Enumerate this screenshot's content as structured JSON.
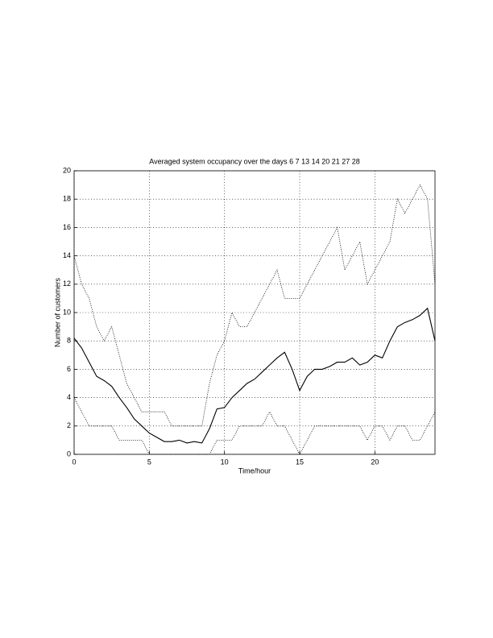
{
  "chart_data": {
    "type": "line",
    "title": "Averaged system occupancy over the days 6  7 13  14  20  21  27 28",
    "xlabel": "Time/hour",
    "ylabel": "Number of customers",
    "x": [
      0,
      0.5,
      1,
      1.5,
      2,
      2.5,
      3,
      3.5,
      4,
      4.5,
      5,
      5.5,
      6,
      6.5,
      7,
      7.5,
      8,
      8.5,
      9,
      9.5,
      10,
      10.5,
      11,
      11.5,
      12,
      12.5,
      13,
      13.5,
      14,
      14.5,
      15,
      15.5,
      16,
      16.5,
      17,
      17.5,
      18,
      18.5,
      19,
      19.5,
      20,
      20.5,
      21,
      21.5,
      22,
      22.5,
      23,
      23.5,
      24
    ],
    "series": [
      {
        "color": "#000000",
        "style": "dotted",
        "values": [
          14,
          12,
          11,
          9,
          8,
          9,
          7,
          5,
          4,
          3,
          3,
          3,
          3,
          2,
          2,
          2,
          2,
          2,
          5,
          7,
          8,
          10,
          9,
          9,
          10,
          11,
          12,
          13,
          11,
          11,
          11,
          12,
          13,
          14,
          15,
          16,
          13,
          14,
          15,
          12,
          13,
          14,
          15,
          18,
          17,
          18,
          19,
          18,
          12
        ]
      },
      {
        "color": "#000000",
        "style": "dotted",
        "values": [
          4,
          3,
          2,
          2,
          2,
          2,
          1,
          1,
          1,
          1,
          0,
          0,
          0,
          0,
          0,
          0,
          0,
          0,
          0,
          1,
          1,
          1,
          2,
          2,
          2,
          2,
          3,
          2,
          2,
          1,
          0,
          1,
          2,
          2,
          2,
          2,
          2,
          2,
          2,
          1,
          2,
          2,
          1,
          2,
          2,
          1,
          1,
          2,
          3
        ]
      },
      {
        "color": "#000000",
        "style": "solid",
        "values": [
          8.2,
          7.5,
          6.5,
          5.5,
          5.2,
          4.8,
          4,
          3.3,
          2.5,
          2,
          1.5,
          1.2,
          0.9,
          0.9,
          1,
          0.8,
          0.9,
          0.8,
          1.8,
          3.2,
          3.3,
          4,
          4.5,
          5,
          5.3,
          5.8,
          6.3,
          6.8,
          7.2,
          6,
          4.5,
          5.5,
          6,
          6,
          6.2,
          6.5,
          6.5,
          6.8,
          6.3,
          6.5,
          7,
          6.8,
          8,
          9,
          9.3,
          9.5,
          9.8,
          10.3,
          8
        ]
      }
    ],
    "xlim": [
      0,
      24
    ],
    "xticks": [
      0,
      5,
      10,
      15,
      20
    ],
    "ylim": [
      0,
      20
    ],
    "yticks": [
      0,
      2,
      4,
      6,
      8,
      10,
      12,
      14,
      16,
      18,
      20
    ],
    "grid": true
  }
}
